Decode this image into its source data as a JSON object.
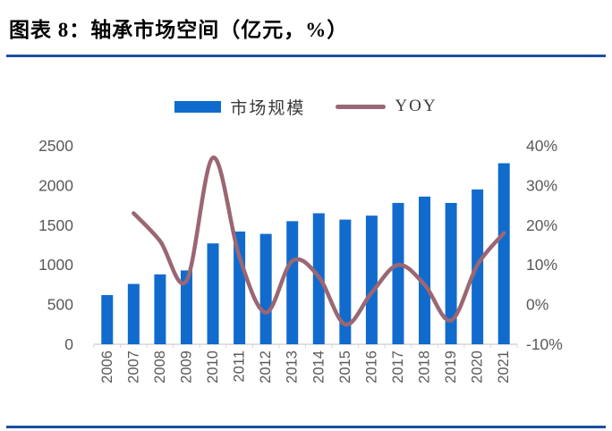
{
  "figure": {
    "title": "图表 8：轴承市场空间（亿元，%）",
    "accent_color": "#1E4FA0"
  },
  "legend": {
    "bar_label": "市场规模",
    "line_label": "YOY"
  },
  "chart_data": {
    "type": "bar+line combo",
    "categories": [
      "2006",
      "2007",
      "2008",
      "2009",
      "2010",
      "2011",
      "2012",
      "2013",
      "2014",
      "2015",
      "2016",
      "2017",
      "2018",
      "2019",
      "2020",
      "2021"
    ],
    "series": [
      {
        "name": "市场规模",
        "type": "bar",
        "axis": "left",
        "unit": "亿元",
        "color": "#116BCD",
        "values": [
          620,
          760,
          880,
          930,
          1270,
          1420,
          1390,
          1550,
          1650,
          1570,
          1620,
          1780,
          1860,
          1780,
          1950,
          2280
        ]
      },
      {
        "name": "YOY",
        "type": "line",
        "axis": "right",
        "unit": "%",
        "color": "#9A6773",
        "smooth": true,
        "values": [
          null,
          23,
          16,
          6,
          37,
          12,
          -2,
          11,
          7,
          -5,
          3,
          10,
          5,
          -4,
          10,
          18
        ]
      }
    ],
    "left_axis": {
      "tick_labels": [
        "0",
        "500",
        "1000",
        "1500",
        "2000",
        "2500"
      ],
      "tick_values": [
        0,
        500,
        1000,
        1500,
        2000,
        2500
      ],
      "range": [
        0,
        2500
      ]
    },
    "right_axis": {
      "tick_labels": [
        "-10%",
        "0%",
        "10%",
        "20%",
        "30%",
        "40%"
      ],
      "tick_values": [
        -10,
        0,
        10,
        20,
        30,
        40
      ],
      "range": [
        -10,
        40
      ]
    },
    "grid": false,
    "legend_position": "top-center",
    "x_label_rotation": -90,
    "axis_text_color": "#595959",
    "axis_line_color": "#D6D6D6"
  }
}
